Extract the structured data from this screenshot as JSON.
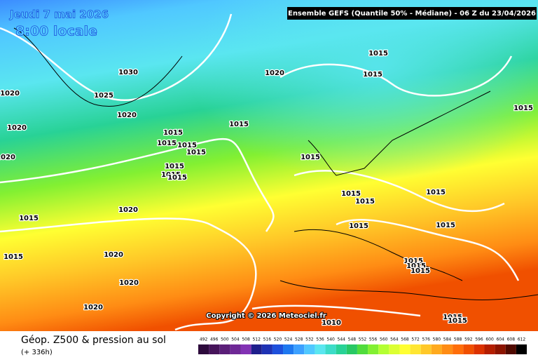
{
  "header": {
    "date": "Jeudi 7 mai 2026",
    "time": "8:00 locale",
    "run": "Ensemble GEFS  (Quantile 50% - Médiane) - 06 Z du 23/04/2026"
  },
  "copyright": "Copyright © 2026 Meteociel.fr",
  "isobar_labels": [
    1015,
    1020,
    1015,
    1030,
    1025,
    1020,
    1020,
    1015,
    1020,
    1015,
    1015,
    1015,
    1015,
    1015,
    1020,
    1015,
    1015,
    1015,
    1015,
    1015,
    1015,
    1015,
    1020,
    1015,
    1015,
    1015,
    1020,
    1015,
    1015,
    1015,
    1015,
    1020,
    1020,
    1015,
    1015,
    1010
  ],
  "footer": {
    "title": "Géop. Z500 & pression au sol",
    "lead": "(+ 336h)"
  },
  "scale": {
    "values": [
      492,
      496,
      500,
      504,
      508,
      512,
      516,
      520,
      524,
      528,
      532,
      536,
      540,
      544,
      548,
      552,
      556,
      560,
      564,
      568,
      572,
      576,
      580,
      584,
      588,
      592,
      596,
      600,
      604,
      608,
      612
    ],
    "colors": [
      "#2d0a3c",
      "#46145a",
      "#5a1e78",
      "#6e2896",
      "#8232b4",
      "#1e1e8c",
      "#1e32b4",
      "#1e50dc",
      "#1e78f0",
      "#3ca0ff",
      "#50c8ff",
      "#5ae6f0",
      "#3cdcc8",
      "#28d296",
      "#28c864",
      "#50dc3c",
      "#82f032",
      "#b4ff32",
      "#dcff32",
      "#ffff32",
      "#ffe632",
      "#ffc828",
      "#ffaa1e",
      "#ff8c14",
      "#ff6e0a",
      "#f05000",
      "#dc3200",
      "#b41e00",
      "#8c1400",
      "#500a00",
      "#000000"
    ]
  }
}
